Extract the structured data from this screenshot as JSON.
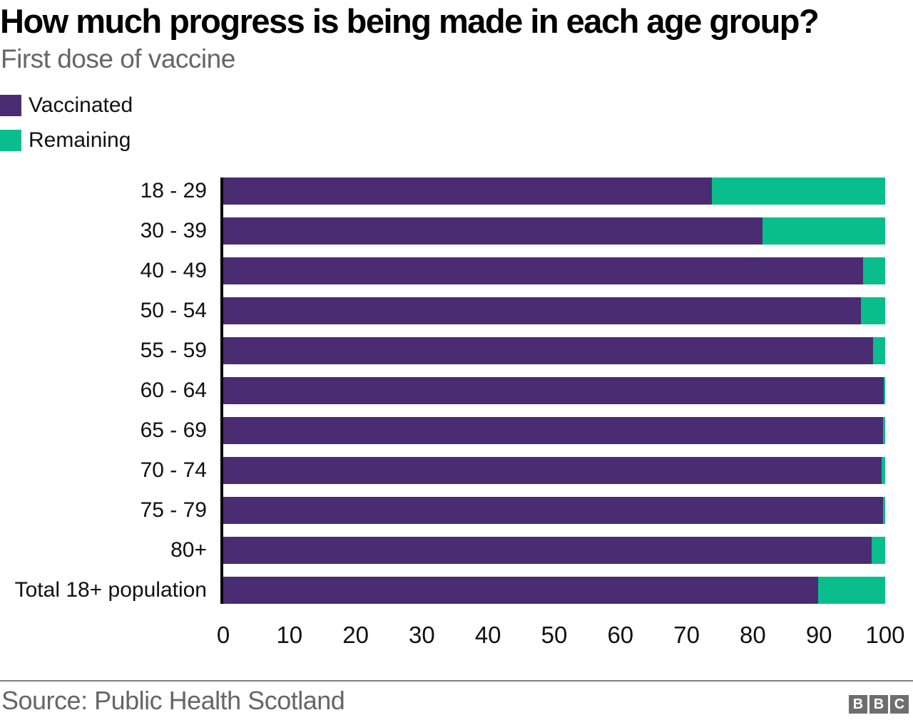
{
  "title": "How much progress is being made in each age group?",
  "subtitle": "First dose of vaccine",
  "colors": {
    "vaccinated": "#4a2c72",
    "remaining": "#09bd8d",
    "axis": "#000000",
    "muted_text": "#666666",
    "divider": "#7f7f7f",
    "bbc_gray": "#6e6e6e"
  },
  "legend": {
    "items": [
      {
        "label": "Vaccinated",
        "color": "#4a2c72"
      },
      {
        "label": "Remaining",
        "color": "#09bd8d"
      }
    ]
  },
  "chart_data": {
    "type": "bar",
    "stacked": true,
    "orientation": "horizontal",
    "title": "How much progress is being made in each age group?",
    "subtitle": "First dose of vaccine",
    "categories": [
      "18 - 29",
      "30 - 39",
      "40 - 49",
      "50 - 54",
      "55 - 59",
      "60 - 64",
      "65 - 69",
      "70 - 74",
      "75 - 79",
      "80+",
      "Total 18+ population"
    ],
    "series": [
      {
        "name": "Vaccinated",
        "color": "#4a2c72",
        "values": [
          73.8,
          81.5,
          96.7,
          96.3,
          98.2,
          99.8,
          99.7,
          99.5,
          99.7,
          97.9,
          89.9
        ]
      },
      {
        "name": "Remaining",
        "color": "#09bd8d",
        "values": [
          26.2,
          18.5,
          3.3,
          3.7,
          1.8,
          0.2,
          0.3,
          0.5,
          0.3,
          2.1,
          10.1
        ]
      }
    ],
    "xlabel": "",
    "ylabel": "",
    "xlim": [
      0,
      100
    ],
    "xticks": [
      0,
      10,
      20,
      30,
      40,
      50,
      60,
      70,
      80,
      90,
      100
    ],
    "grid": false,
    "legend_position": "top-left"
  },
  "footer": {
    "source": "Source: Public Health Scotland",
    "logo_letters": [
      "B",
      "B",
      "C"
    ]
  }
}
